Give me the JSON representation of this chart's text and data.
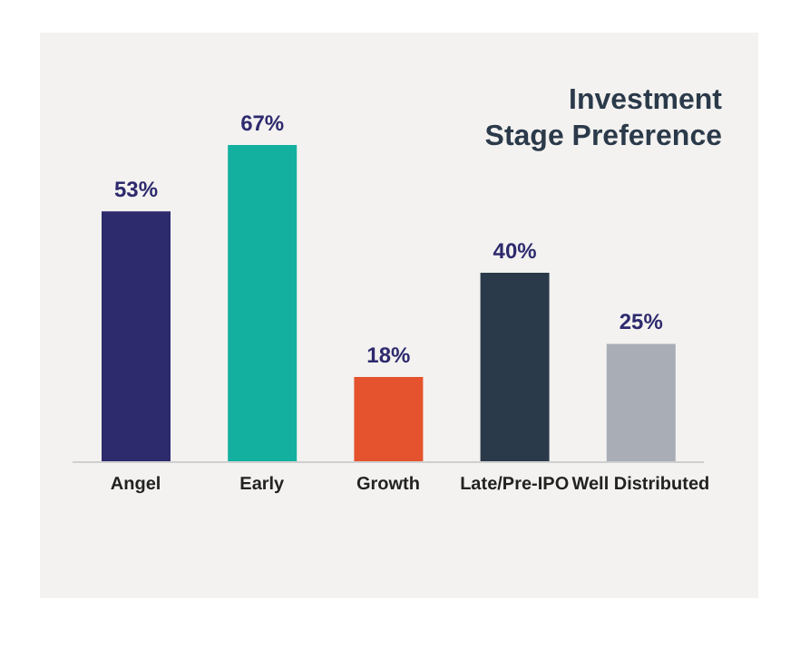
{
  "chart_data": {
    "type": "bar",
    "title": "Investment\nStage Preference",
    "categories": [
      "Angel",
      "Early",
      "Growth",
      "Late/Pre-IPO",
      "Well Distributed"
    ],
    "values": [
      53,
      67,
      18,
      40,
      25
    ],
    "colors": [
      "#2e2a6e",
      "#13b0a0",
      "#e4532d",
      "#2b3a4a",
      "#a9adb6"
    ],
    "value_labels": [
      "53%",
      "67%",
      "18%",
      "40%",
      "25%"
    ],
    "grid": false
  }
}
